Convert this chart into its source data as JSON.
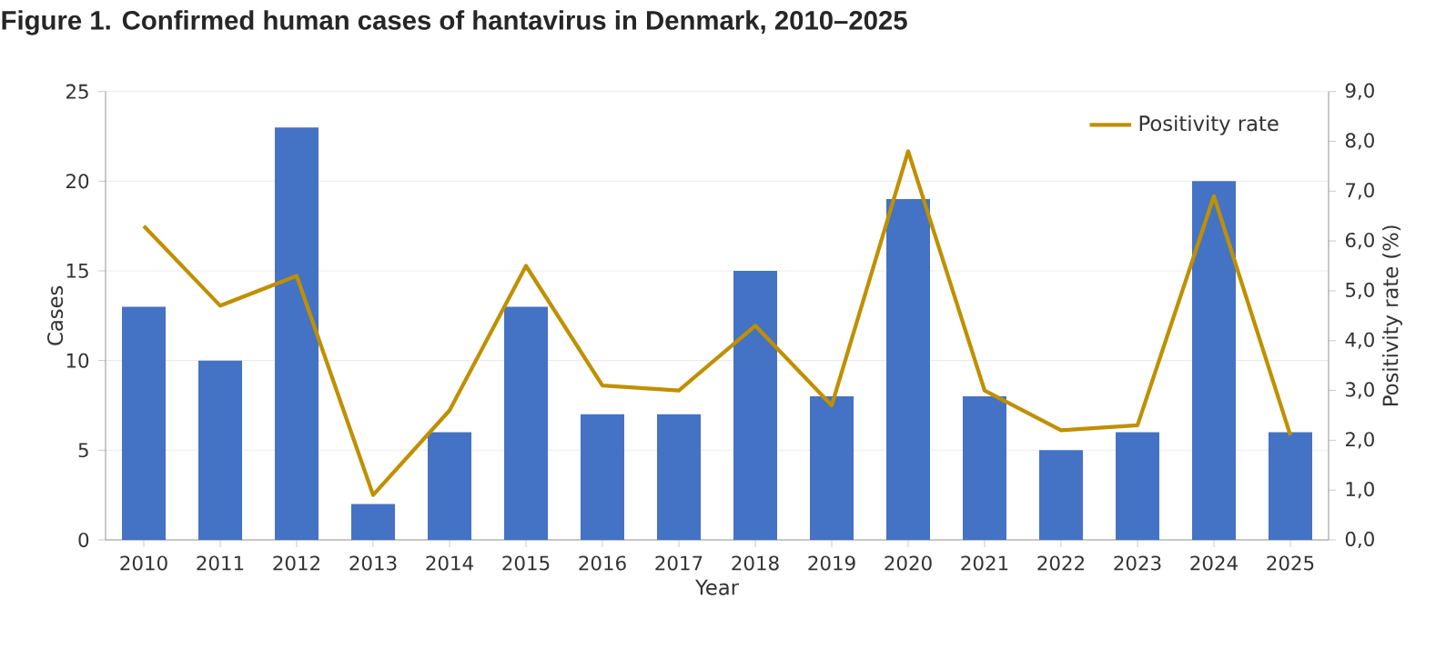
{
  "chart_data": {
    "type": "bar",
    "title": "Figure 1. Confirmed human cases of hantavirus in Denmark, 2010–2025",
    "xlabel": "Year",
    "ylabel": "Cases",
    "y2label": "Positivity rate (%)",
    "categories": [
      "2010",
      "2011",
      "2012",
      "2013",
      "2014",
      "2015",
      "2016",
      "2017",
      "2018",
      "2019",
      "2020",
      "2021",
      "2022",
      "2023",
      "2024",
      "2025"
    ],
    "series": [
      {
        "color": "#4472c4",
        "values": [
          13,
          10,
          23,
          2,
          6,
          13,
          7,
          7,
          15,
          8,
          19,
          8,
          5,
          6,
          20,
          6
        ]
      },
      {
        "type": "line",
        "axis": "y2",
        "name": "Positivity rate",
        "color": "#bf9000",
        "values": [
          6.3,
          4.7,
          5.3,
          0.9,
          2.6,
          5.5,
          3.1,
          3.0,
          4.3,
          2.7,
          7.8,
          3.0,
          2.2,
          2.3,
          6.9,
          2.1
        ]
      }
    ],
    "ylim": [
      0,
      25
    ],
    "yticks": [
      0,
      5,
      10,
      15,
      20,
      25
    ],
    "y2lim": [
      0,
      9
    ],
    "y2ticks": [
      {
        "value": 0,
        "label": "0,0"
      },
      {
        "value": 1,
        "label": "1,0"
      },
      {
        "value": 2,
        "label": "2,0"
      },
      {
        "value": 3,
        "label": "3,0"
      },
      {
        "value": 4,
        "label": "4,0"
      },
      {
        "value": 5,
        "label": "5,0"
      },
      {
        "value": 6,
        "label": "6,0"
      },
      {
        "value": 7,
        "label": "7,0"
      },
      {
        "value": 8,
        "label": "8,0"
      },
      {
        "value": 9,
        "label": "9,0"
      }
    ],
    "grid": "y",
    "legend": "top right",
    "marker": "none",
    "line_style": "solid"
  }
}
